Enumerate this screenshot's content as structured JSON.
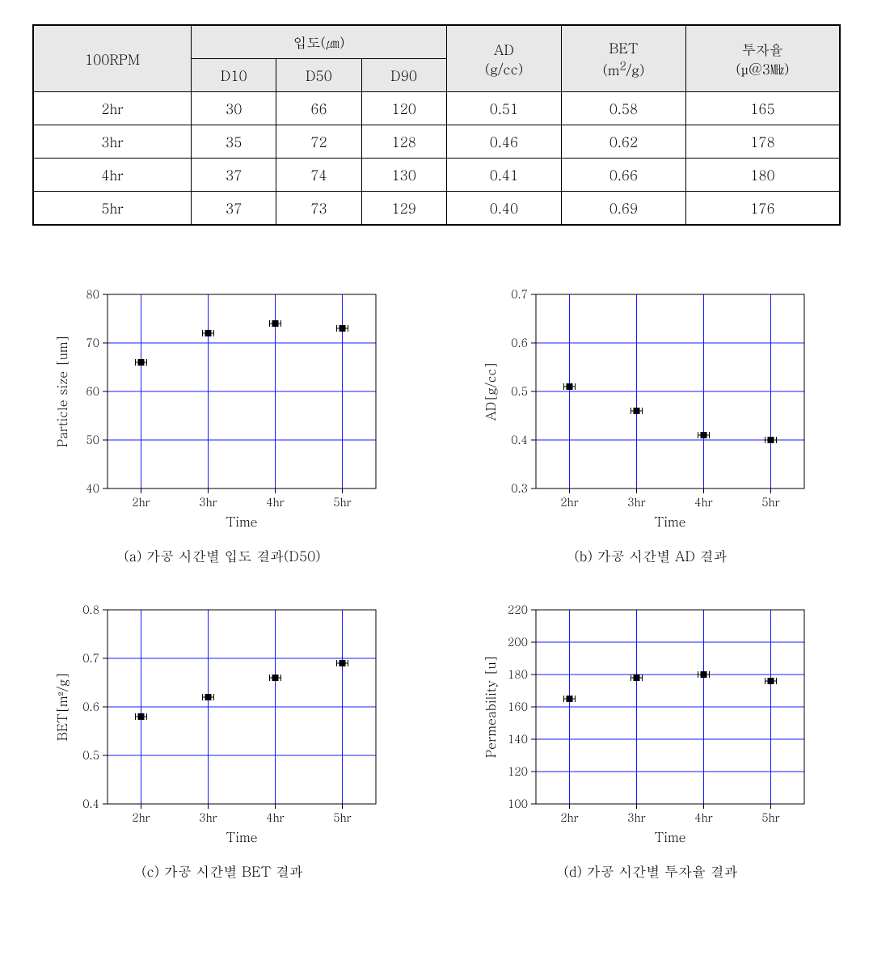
{
  "table": {
    "header_bg": "#e8e8e8",
    "col1": "100RPM",
    "group": "입도(㎛)",
    "sub": [
      "D10",
      "D50",
      "D90"
    ],
    "ad": "AD\n(g/cc)",
    "bet": "BET\n(m²/g)",
    "perm": "투자율\n(μ@3㎒)",
    "rows": [
      {
        "t": "2hr",
        "d10": "30",
        "d50": "66",
        "d90": "120",
        "ad": "0.51",
        "bet": "0.58",
        "perm": "165"
      },
      {
        "t": "3hr",
        "d10": "35",
        "d50": "72",
        "d90": "128",
        "ad": "0.46",
        "bet": "0.62",
        "perm": "178"
      },
      {
        "t": "4hr",
        "d10": "37",
        "d50": "74",
        "d90": "130",
        "ad": "0.41",
        "bet": "0.66",
        "perm": "180"
      },
      {
        "t": "5hr",
        "d10": "37",
        "d50": "73",
        "d90": "129",
        "ad": "0.40",
        "bet": "0.69",
        "perm": "176"
      }
    ]
  },
  "charts": {
    "x_categories": [
      "2hr",
      "3hr",
      "4hr",
      "5hr"
    ],
    "xlabel": "Time",
    "grid_color": "#1818ff",
    "marker_size": 8,
    "a": {
      "caption": "(a) 가공 시간별 입도 결과(D50)",
      "ylabel": "Particle size [um]",
      "ylim": [
        40,
        80
      ],
      "ytick_step": 10,
      "values": [
        66,
        72,
        74,
        73
      ]
    },
    "b": {
      "caption": "(b) 가공 시간별 AD 결과",
      "ylabel": "AD[g/cc]",
      "ylim": [
        0.3,
        0.7
      ],
      "ytick_step": 0.1,
      "values": [
        0.51,
        0.46,
        0.41,
        0.4
      ]
    },
    "c": {
      "caption": "(c) 가공 시간별 BET 결과",
      "ylabel": "BET[m²/g]",
      "ylim": [
        0.4,
        0.8
      ],
      "ytick_step": 0.1,
      "values": [
        0.58,
        0.62,
        0.66,
        0.69
      ]
    },
    "d": {
      "caption": "(d) 가공 시간별 투자율 결과",
      "ylabel": "Permeability [u]",
      "ylim": [
        100,
        220
      ],
      "ytick_step": 20,
      "values": [
        165,
        178,
        180,
        176
      ]
    }
  }
}
